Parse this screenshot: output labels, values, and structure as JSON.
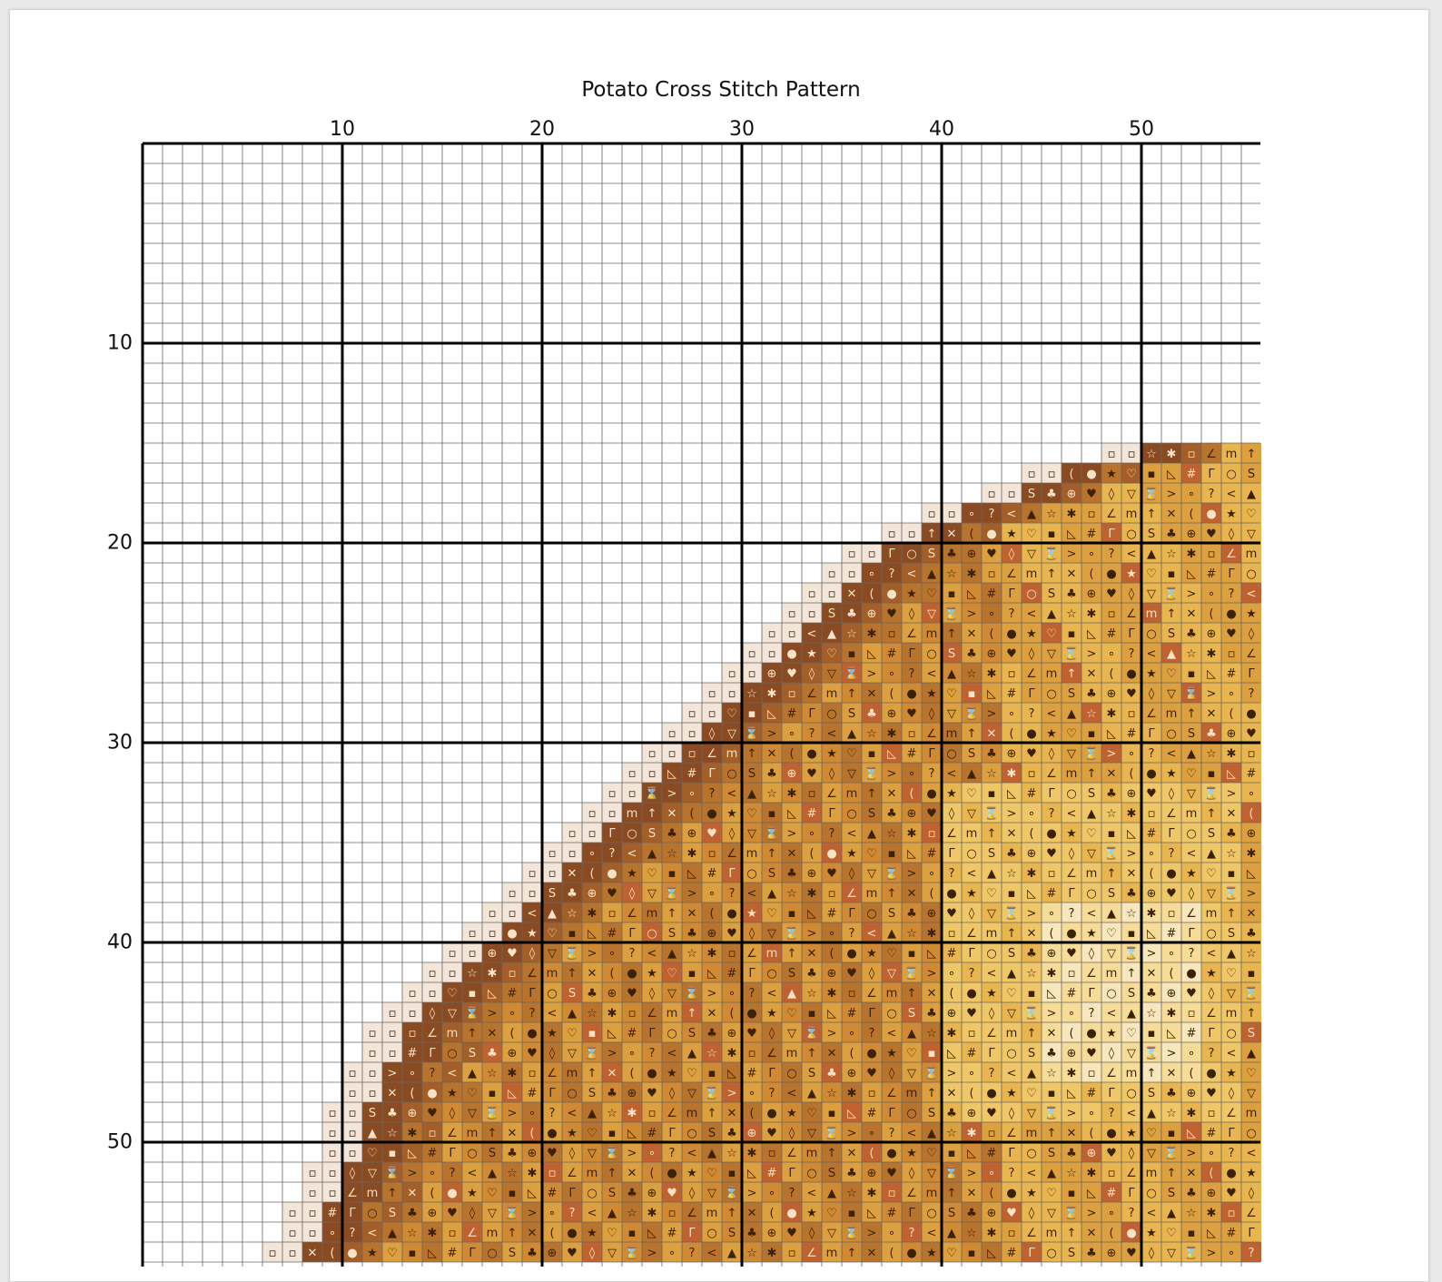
{
  "pattern": {
    "title": "Potato Cross Stitch Pattern",
    "column_numbers": [
      "10",
      "20",
      "30",
      "40",
      "50"
    ],
    "row_numbers": [
      "10",
      "20",
      "30",
      "40",
      "50"
    ],
    "grid_columns": 56,
    "grid_rows_visible": 56,
    "major_line_every": 10
  },
  "thread_colors": {
    "grid_line": "#666666",
    "major_line": "#000000",
    "outline_cream": "#f3e6d8",
    "darkest_brown": "#8a4b22",
    "dark_brown": "#a45e27",
    "medium_brown": "#b8732d",
    "rust": "#c0622f",
    "amber": "#cf8a33",
    "gold": "#dca03e",
    "light_gold": "#e8b54e",
    "pale_gold": "#f0c766",
    "cream_yellow": "#f6dc97",
    "very_pale": "#f8e7bd"
  },
  "symbols": [
    "★",
    "☆",
    "♥",
    "♡",
    "✱",
    "◊",
    "▪",
    "▫",
    "▽",
    "◺",
    "∠",
    "⌛",
    "#",
    "m",
    ">",
    "Γ",
    "↑",
    "∘",
    "○",
    "✕",
    "?",
    "S",
    "(",
    "<",
    "♣",
    "●",
    "▲",
    "⊕"
  ]
}
